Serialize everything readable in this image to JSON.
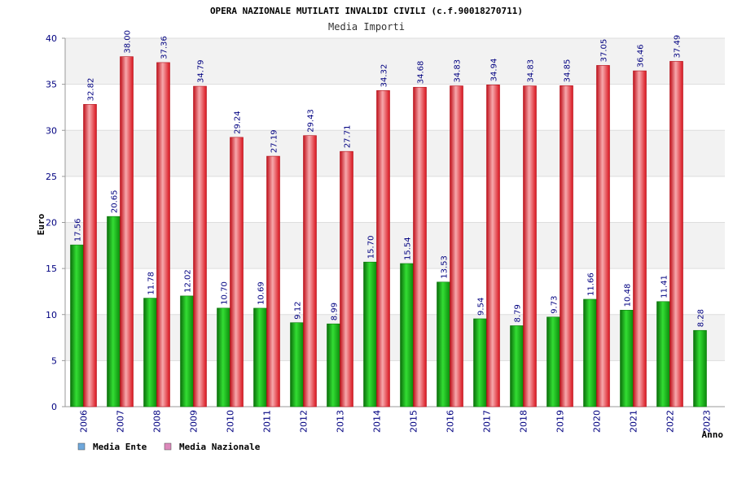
{
  "chart_data": {
    "type": "bar",
    "title": "OPERA NAZIONALE MUTILATI INVALIDI CIVILI (c.f.90018270711)",
    "subtitle": "Media Importi",
    "xlabel": "Anno",
    "ylabel": "Euro",
    "ylim": [
      0,
      40
    ],
    "yticks": [
      0,
      5,
      10,
      15,
      20,
      25,
      30,
      35,
      40
    ],
    "grid": true,
    "legend_position": "bottom-left",
    "categories": [
      "2006",
      "2007",
      "2008",
      "2009",
      "2010",
      "2011",
      "2012",
      "2013",
      "2014",
      "2015",
      "2016",
      "2017",
      "2018",
      "2019",
      "2020",
      "2021",
      "2022",
      "2023"
    ],
    "series": [
      {
        "name": "Media Ente",
        "color": "#11aa11",
        "legend_color": "#6fa8dc",
        "values": [
          17.56,
          20.65,
          11.78,
          12.02,
          10.7,
          10.69,
          9.12,
          8.99,
          15.7,
          15.54,
          13.53,
          9.54,
          8.79,
          9.73,
          11.66,
          10.48,
          11.41,
          8.28
        ],
        "labels": [
          "17.56",
          "20.65",
          "11.78",
          "12.02",
          "10.70",
          "10.69",
          "9.12",
          "8.99",
          "15.70",
          "15.54",
          "13.53",
          "9.54",
          "8.79",
          "9.73",
          "11.66",
          "10.48",
          "11.41",
          "8.28"
        ]
      },
      {
        "name": "Media Nazionale",
        "color": "#e8202a",
        "legend_color": "#dd88bb",
        "values": [
          32.82,
          38.0,
          37.36,
          34.79,
          29.24,
          27.19,
          29.43,
          27.71,
          34.32,
          34.68,
          34.83,
          34.94,
          34.83,
          34.85,
          37.05,
          36.46,
          37.49,
          null
        ],
        "labels": [
          "32.82",
          "38.00",
          "37.36",
          "34.79",
          "29.24",
          "27.19",
          "29.43",
          "27.71",
          "34.32",
          "34.68",
          "34.83",
          "34.94",
          "34.83",
          "34.85",
          "37.05",
          "36.46",
          "37.49",
          null
        ]
      }
    ]
  }
}
